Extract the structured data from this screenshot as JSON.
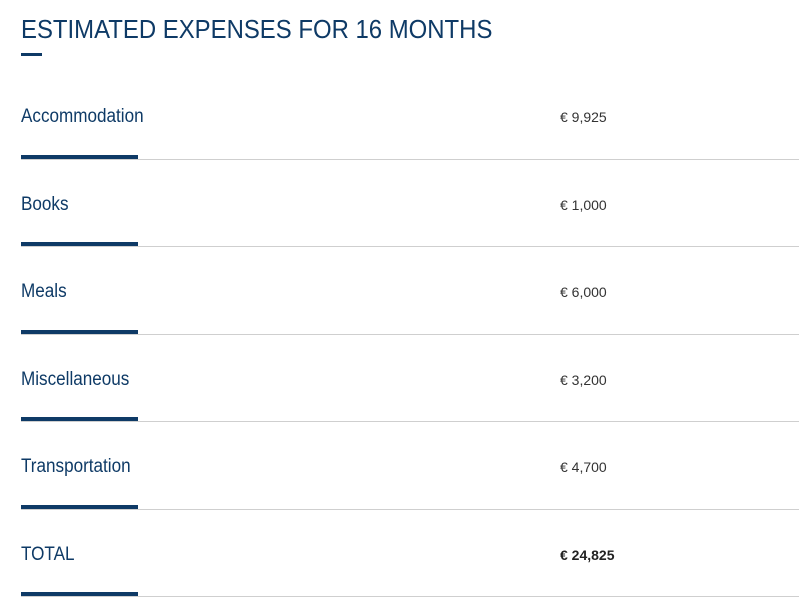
{
  "heading": "ESTIMATED EXPENSES FOR 16 MONTHS",
  "expenses": [
    {
      "label": "Accommodation",
      "value": "€ 9,925"
    },
    {
      "label": "Books",
      "value": "€ 1,000"
    },
    {
      "label": "Meals",
      "value": "€ 6,000"
    },
    {
      "label": "Miscellaneous",
      "value": "€ 3,200"
    },
    {
      "label": "Transportation",
      "value": "€ 4,700"
    }
  ],
  "total": {
    "label": "TOTAL",
    "value": "€ 24,825"
  },
  "colors": {
    "accent": "#0e3a66",
    "divider": "#cfcfcf",
    "value_text": "#333333"
  }
}
